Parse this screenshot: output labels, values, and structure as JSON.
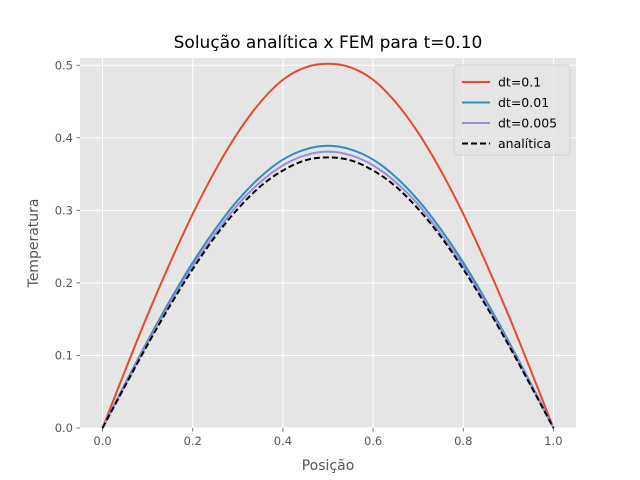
{
  "chart_data": {
    "type": "line",
    "title": "Solução analítica x FEM para t=0.10",
    "xlabel": "Posição",
    "ylabel": "Temperatura",
    "xlim": [
      -0.05,
      1.05
    ],
    "ylim": [
      0.0,
      0.51
    ],
    "xticks": [
      0.0,
      0.2,
      0.4,
      0.6,
      0.8,
      1.0
    ],
    "xtick_labels": [
      "0.0",
      "0.2",
      "0.4",
      "0.6",
      "0.8",
      "1.0"
    ],
    "yticks": [
      0.0,
      0.1,
      0.2,
      0.3,
      0.4,
      0.5
    ],
    "ytick_labels": [
      "0.0",
      "0.1",
      "0.2",
      "0.3",
      "0.4",
      "0.5"
    ],
    "grid": true,
    "legend_position": "top-right",
    "x": [
      0.0,
      0.05,
      0.1,
      0.15,
      0.2,
      0.25,
      0.3,
      0.35,
      0.4,
      0.45,
      0.5,
      0.55,
      0.6,
      0.65,
      0.7,
      0.75,
      0.8,
      0.85,
      0.9,
      0.95,
      1.0
    ],
    "series": [
      {
        "name": "dt=0.1",
        "color": "#e24a33",
        "dash": "solid",
        "values": [
          0.0,
          0.079,
          0.156,
          0.228,
          0.295,
          0.355,
          0.407,
          0.449,
          0.48,
          0.497,
          0.502,
          0.497,
          0.48,
          0.449,
          0.407,
          0.355,
          0.295,
          0.228,
          0.156,
          0.079,
          0.0
        ]
      },
      {
        "name": "dt=0.01",
        "color": "#348abd",
        "dash": "solid",
        "values": [
          0.0,
          0.061,
          0.12,
          0.176,
          0.228,
          0.274,
          0.314,
          0.346,
          0.37,
          0.384,
          0.389,
          0.384,
          0.37,
          0.346,
          0.314,
          0.274,
          0.228,
          0.176,
          0.12,
          0.061,
          0.0
        ]
      },
      {
        "name": "dt=0.005",
        "color": "#988ed5",
        "dash": "solid",
        "values": [
          0.0,
          0.059,
          0.117,
          0.172,
          0.223,
          0.268,
          0.308,
          0.339,
          0.362,
          0.376,
          0.381,
          0.376,
          0.362,
          0.339,
          0.308,
          0.268,
          0.223,
          0.172,
          0.117,
          0.059,
          0.0
        ]
      },
      {
        "name": "analítica",
        "color": "#000000",
        "dash": "dashed",
        "values": [
          0.0,
          0.058,
          0.115,
          0.169,
          0.219,
          0.264,
          0.302,
          0.333,
          0.355,
          0.369,
          0.373,
          0.369,
          0.355,
          0.333,
          0.302,
          0.264,
          0.219,
          0.169,
          0.115,
          0.058,
          0.0
        ]
      }
    ]
  }
}
